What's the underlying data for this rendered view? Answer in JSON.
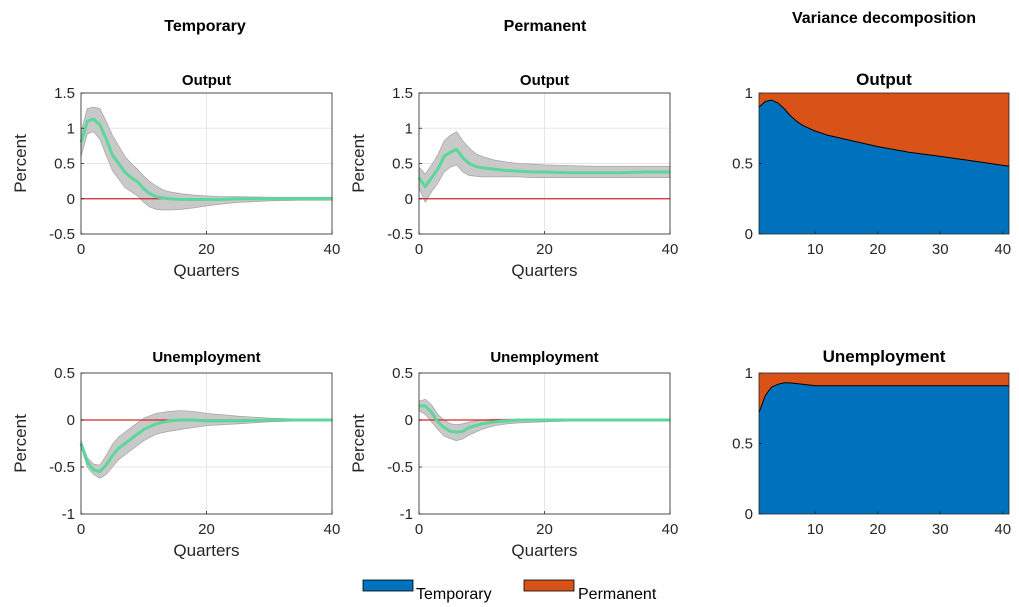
{
  "columns": {
    "temporary": "Temporary",
    "permanent": "Permanent",
    "variance": "Variance decomposition"
  },
  "legend": {
    "entries": [
      {
        "label": "Temporary",
        "color": "#0072BD"
      },
      {
        "label": "Permanent",
        "color": "#D95319"
      }
    ]
  },
  "colors": {
    "irf_line": "#5BD79B",
    "band": "#C9C9C9",
    "band_edge": "#A8A8A8",
    "zero_line": "#D62728",
    "temporary": "#0072BD",
    "permanent": "#D95319"
  },
  "chart_data": [
    {
      "id": "temp-output",
      "type": "line",
      "title": "Output",
      "xlabel": "Quarters",
      "ylabel": "Percent",
      "xlim": [
        0,
        40
      ],
      "ylim": [
        -0.5,
        1.5
      ],
      "xticks": [
        0,
        20,
        40
      ],
      "yticks": [
        -0.5,
        0,
        0.5,
        1,
        1.5
      ],
      "xtick_labels": [
        "0",
        "20",
        "40"
      ],
      "ytick_labels": [
        "-0.5",
        "0",
        "0.5",
        "1",
        "1.5"
      ],
      "grid": true,
      "zero_line": 0,
      "x": [
        0,
        1,
        2,
        3,
        4,
        5,
        6,
        7,
        8,
        9,
        10,
        11,
        12,
        13,
        14,
        16,
        18,
        20,
        22,
        25,
        30,
        35,
        40
      ],
      "median": [
        0.8,
        1.1,
        1.13,
        1.05,
        0.85,
        0.62,
        0.5,
        0.38,
        0.3,
        0.24,
        0.14,
        0.07,
        0.03,
        0.01,
        0.0,
        -0.01,
        -0.01,
        -0.01,
        -0.01,
        0.0,
        0.0,
        0.0,
        0.0
      ],
      "upper": [
        0.95,
        1.28,
        1.3,
        1.28,
        1.1,
        0.9,
        0.75,
        0.6,
        0.5,
        0.42,
        0.32,
        0.24,
        0.18,
        0.13,
        0.1,
        0.07,
        0.05,
        0.04,
        0.03,
        0.03,
        0.02,
        0.02,
        0.02
      ],
      "lower": [
        0.6,
        0.92,
        0.95,
        0.85,
        0.62,
        0.4,
        0.28,
        0.16,
        0.1,
        0.04,
        -0.05,
        -0.12,
        -0.15,
        -0.16,
        -0.16,
        -0.15,
        -0.13,
        -0.1,
        -0.08,
        -0.05,
        -0.03,
        -0.02,
        -0.02
      ]
    },
    {
      "id": "perm-output",
      "type": "line",
      "title": "Output",
      "xlabel": "Quarters",
      "ylabel": "Percent",
      "xlim": [
        0,
        40
      ],
      "ylim": [
        -0.5,
        1.5
      ],
      "xticks": [
        0,
        20,
        40
      ],
      "yticks": [
        -0.5,
        0,
        0.5,
        1,
        1.5
      ],
      "xtick_labels": [
        "0",
        "20",
        "40"
      ],
      "ytick_labels": [
        "-0.5",
        "0",
        "0.5",
        "1",
        "1.5"
      ],
      "grid": true,
      "zero_line": 0,
      "x": [
        0,
        1,
        2,
        3,
        4,
        5,
        6,
        7,
        8,
        9,
        10,
        12,
        14,
        16,
        18,
        20,
        24,
        28,
        32,
        36,
        40
      ],
      "median": [
        0.3,
        0.17,
        0.3,
        0.42,
        0.6,
        0.66,
        0.7,
        0.58,
        0.5,
        0.46,
        0.44,
        0.42,
        0.4,
        0.39,
        0.38,
        0.38,
        0.37,
        0.37,
        0.37,
        0.38,
        0.38
      ],
      "upper": [
        0.45,
        0.35,
        0.48,
        0.62,
        0.82,
        0.9,
        0.95,
        0.82,
        0.72,
        0.64,
        0.6,
        0.55,
        0.52,
        0.5,
        0.49,
        0.48,
        0.47,
        0.46,
        0.46,
        0.46,
        0.46
      ],
      "lower": [
        0.15,
        -0.05,
        0.1,
        0.22,
        0.38,
        0.45,
        0.48,
        0.38,
        0.33,
        0.32,
        0.31,
        0.31,
        0.31,
        0.31,
        0.3,
        0.3,
        0.3,
        0.3,
        0.3,
        0.3,
        0.3
      ]
    },
    {
      "id": "var-output",
      "type": "area",
      "title": "Output",
      "xlim": [
        1,
        41
      ],
      "ylim": [
        0,
        1
      ],
      "xticks": [
        10,
        20,
        30,
        40
      ],
      "yticks": [
        0,
        0.5,
        1
      ],
      "xtick_labels": [
        "10",
        "20",
        "30",
        "40"
      ],
      "ytick_labels": [
        "0",
        "0.5",
        "1"
      ],
      "grid": false,
      "x": [
        1,
        2,
        3,
        4,
        5,
        6,
        7,
        8,
        9,
        10,
        12,
        15,
        20,
        25,
        30,
        35,
        41
      ],
      "temporary_share": [
        0.9,
        0.94,
        0.95,
        0.93,
        0.89,
        0.84,
        0.8,
        0.77,
        0.75,
        0.73,
        0.7,
        0.67,
        0.62,
        0.58,
        0.55,
        0.52,
        0.48
      ]
    },
    {
      "id": "temp-unemp",
      "type": "line",
      "title": "Unemployment",
      "xlabel": "Quarters",
      "ylabel": "Percent",
      "xlim": [
        0,
        40
      ],
      "ylim": [
        -1,
        0.5
      ],
      "xticks": [
        0,
        20,
        40
      ],
      "yticks": [
        -1,
        -0.5,
        0,
        0.5
      ],
      "xtick_labels": [
        "0",
        "20",
        "40"
      ],
      "ytick_labels": [
        "-1",
        "-0.5",
        "0",
        "0.5"
      ],
      "grid": true,
      "zero_line": 0,
      "x": [
        0,
        1,
        2,
        3,
        4,
        5,
        6,
        8,
        10,
        12,
        14,
        16,
        18,
        20,
        25,
        30,
        35,
        40
      ],
      "median": [
        -0.25,
        -0.45,
        -0.53,
        -0.55,
        -0.48,
        -0.38,
        -0.3,
        -0.2,
        -0.1,
        -0.04,
        -0.01,
        0.0,
        0.0,
        -0.01,
        -0.01,
        0.0,
        0.0,
        0.0
      ],
      "upper": [
        -0.22,
        -0.4,
        -0.47,
        -0.48,
        -0.38,
        -0.26,
        -0.18,
        -0.08,
        0.02,
        0.07,
        0.09,
        0.1,
        0.09,
        0.07,
        0.04,
        0.02,
        0.01,
        0.01
      ],
      "lower": [
        -0.28,
        -0.5,
        -0.58,
        -0.62,
        -0.58,
        -0.5,
        -0.42,
        -0.32,
        -0.22,
        -0.15,
        -0.12,
        -0.1,
        -0.08,
        -0.06,
        -0.04,
        -0.02,
        -0.01,
        -0.01
      ]
    },
    {
      "id": "perm-unemp",
      "type": "line",
      "title": "Unemployment",
      "xlabel": "Quarters",
      "ylabel": "Percent",
      "xlim": [
        0,
        40
      ],
      "ylim": [
        -1,
        0.5
      ],
      "xticks": [
        0,
        20,
        40
      ],
      "yticks": [
        -1,
        -0.5,
        0,
        0.5
      ],
      "xtick_labels": [
        "0",
        "20",
        "40"
      ],
      "ytick_labels": [
        "-1",
        "-0.5",
        "0",
        "0.5"
      ],
      "grid": true,
      "zero_line": 0,
      "x": [
        0,
        1,
        2,
        3,
        4,
        5,
        6,
        7,
        8,
        10,
        12,
        14,
        16,
        20,
        25,
        30,
        35,
        40
      ],
      "median": [
        0.15,
        0.15,
        0.08,
        -0.02,
        -0.08,
        -0.12,
        -0.13,
        -0.12,
        -0.08,
        -0.04,
        -0.02,
        -0.01,
        0.0,
        0.0,
        0.0,
        0.0,
        0.0,
        0.0
      ],
      "upper": [
        0.2,
        0.22,
        0.16,
        0.06,
        0.0,
        -0.04,
        -0.05,
        -0.04,
        -0.02,
        0.0,
        0.01,
        0.01,
        0.01,
        0.01,
        0.01,
        0.01,
        0.01,
        0.01
      ],
      "lower": [
        0.1,
        0.06,
        -0.02,
        -0.1,
        -0.17,
        -0.2,
        -0.22,
        -0.2,
        -0.16,
        -0.1,
        -0.06,
        -0.04,
        -0.03,
        -0.02,
        -0.01,
        -0.01,
        -0.01,
        -0.01
      ]
    },
    {
      "id": "var-unemp",
      "type": "area",
      "title": "Unemployment",
      "xlim": [
        1,
        41
      ],
      "ylim": [
        0,
        1
      ],
      "xticks": [
        10,
        20,
        30,
        40
      ],
      "yticks": [
        0,
        0.5,
        1
      ],
      "xtick_labels": [
        "10",
        "20",
        "30",
        "40"
      ],
      "ytick_labels": [
        "0",
        "0.5",
        "1"
      ],
      "grid": false,
      "x": [
        1,
        2,
        3,
        4,
        5,
        6,
        7,
        8,
        9,
        10,
        12,
        15,
        20,
        25,
        30,
        35,
        41
      ],
      "temporary_share": [
        0.72,
        0.84,
        0.9,
        0.92,
        0.93,
        0.93,
        0.925,
        0.92,
        0.915,
        0.91,
        0.91,
        0.91,
        0.91,
        0.91,
        0.91,
        0.91,
        0.91
      ]
    }
  ]
}
